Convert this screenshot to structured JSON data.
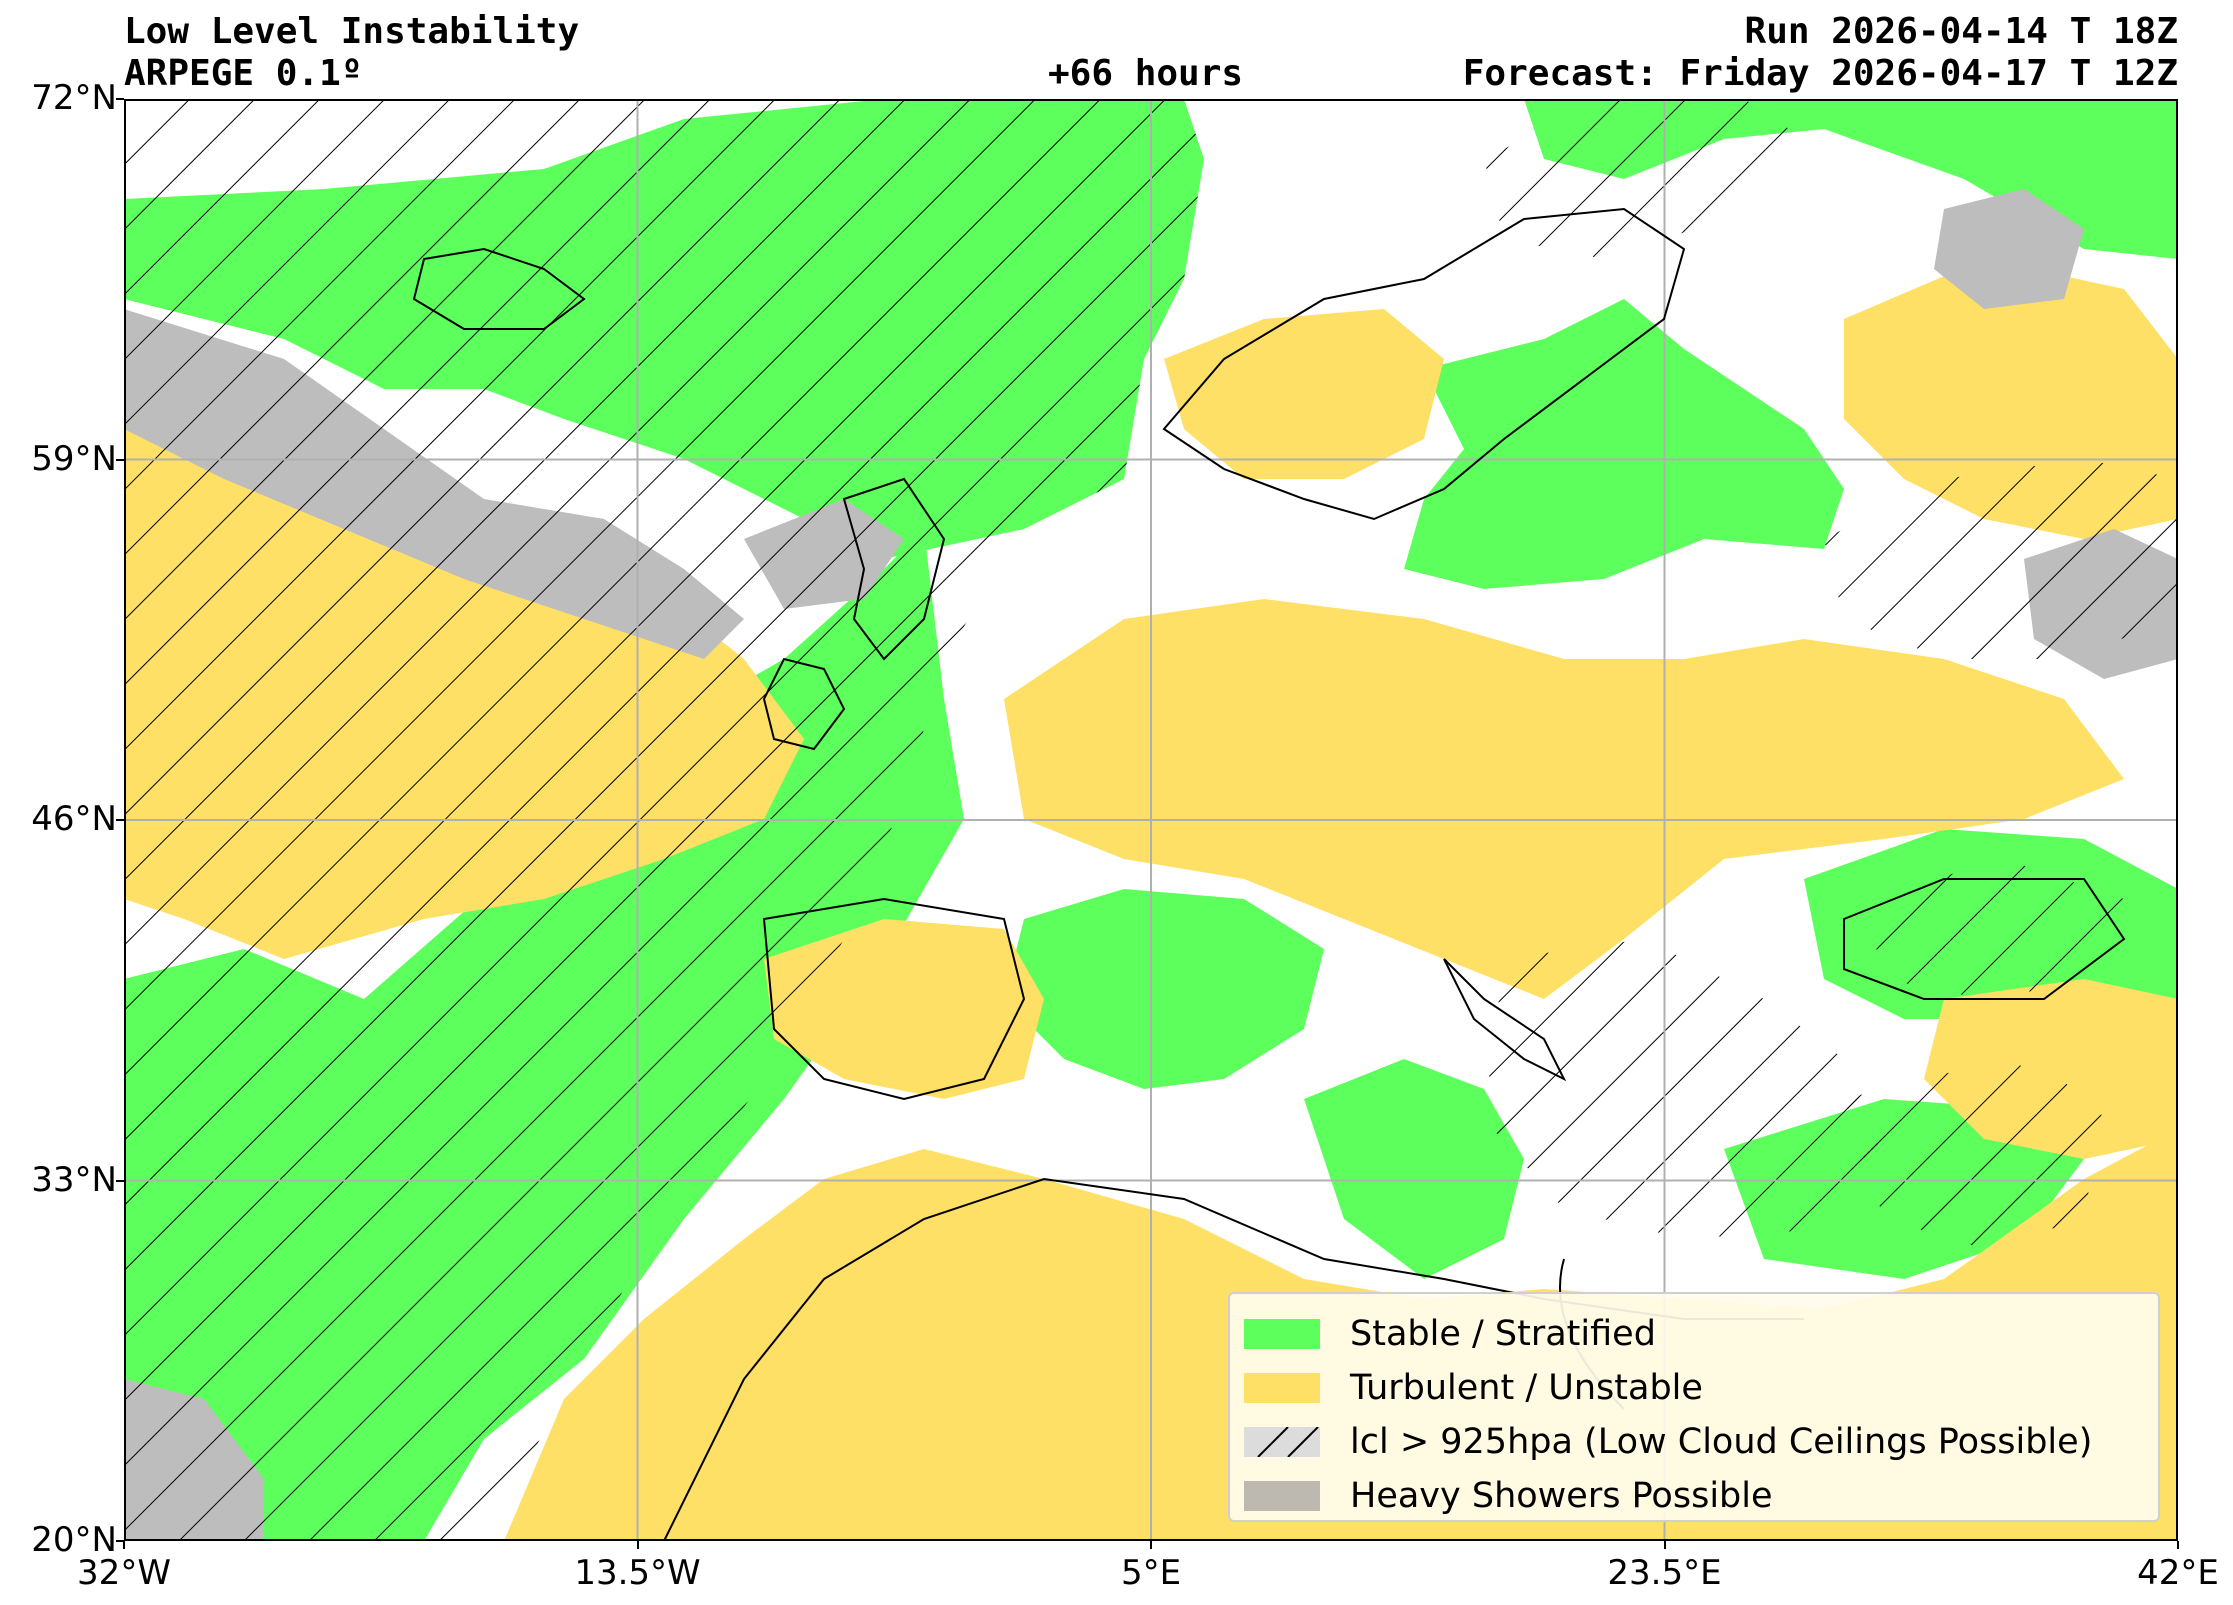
{
  "header": {
    "title": "Low Level Instability",
    "model": "ARPEGE 0.1º",
    "lead_time": "+66 hours",
    "run": "Run 2026-04-14 T 18Z",
    "forecast": "Forecast: Friday 2026-04-17 T 12Z"
  },
  "map": {
    "extent": {
      "lon_min": -32,
      "lon_max": 42,
      "lat_min": 20,
      "lat_max": 72
    },
    "lat_ticks": [
      "72°N",
      "59°N",
      "46°N",
      "33°N",
      "20°N"
    ],
    "lon_ticks": [
      "32°W",
      "13.5°W",
      "5°E",
      "23.5°E",
      "42°E"
    ],
    "grid": true,
    "colors": {
      "stable": "#5cff5c",
      "unstable": "#ffe066",
      "lcl_low": "#ffffff",
      "showers": "#bdbdbd",
      "coastline": "#000000"
    }
  },
  "legend": {
    "placement": "lower-right",
    "items": [
      {
        "label": "Stable / Stratified",
        "color": "#5cff5c",
        "hatch": false
      },
      {
        "label": "Turbulent / Unstable",
        "color": "#ffe066",
        "hatch": false
      },
      {
        "label": "lcl > 925hpa (Low Cloud Ceilings Possible)",
        "color": "#dcdcdc",
        "hatch": true
      },
      {
        "label": "Heavy Showers Possible",
        "color": "#bdb8b0",
        "hatch": false
      }
    ]
  }
}
